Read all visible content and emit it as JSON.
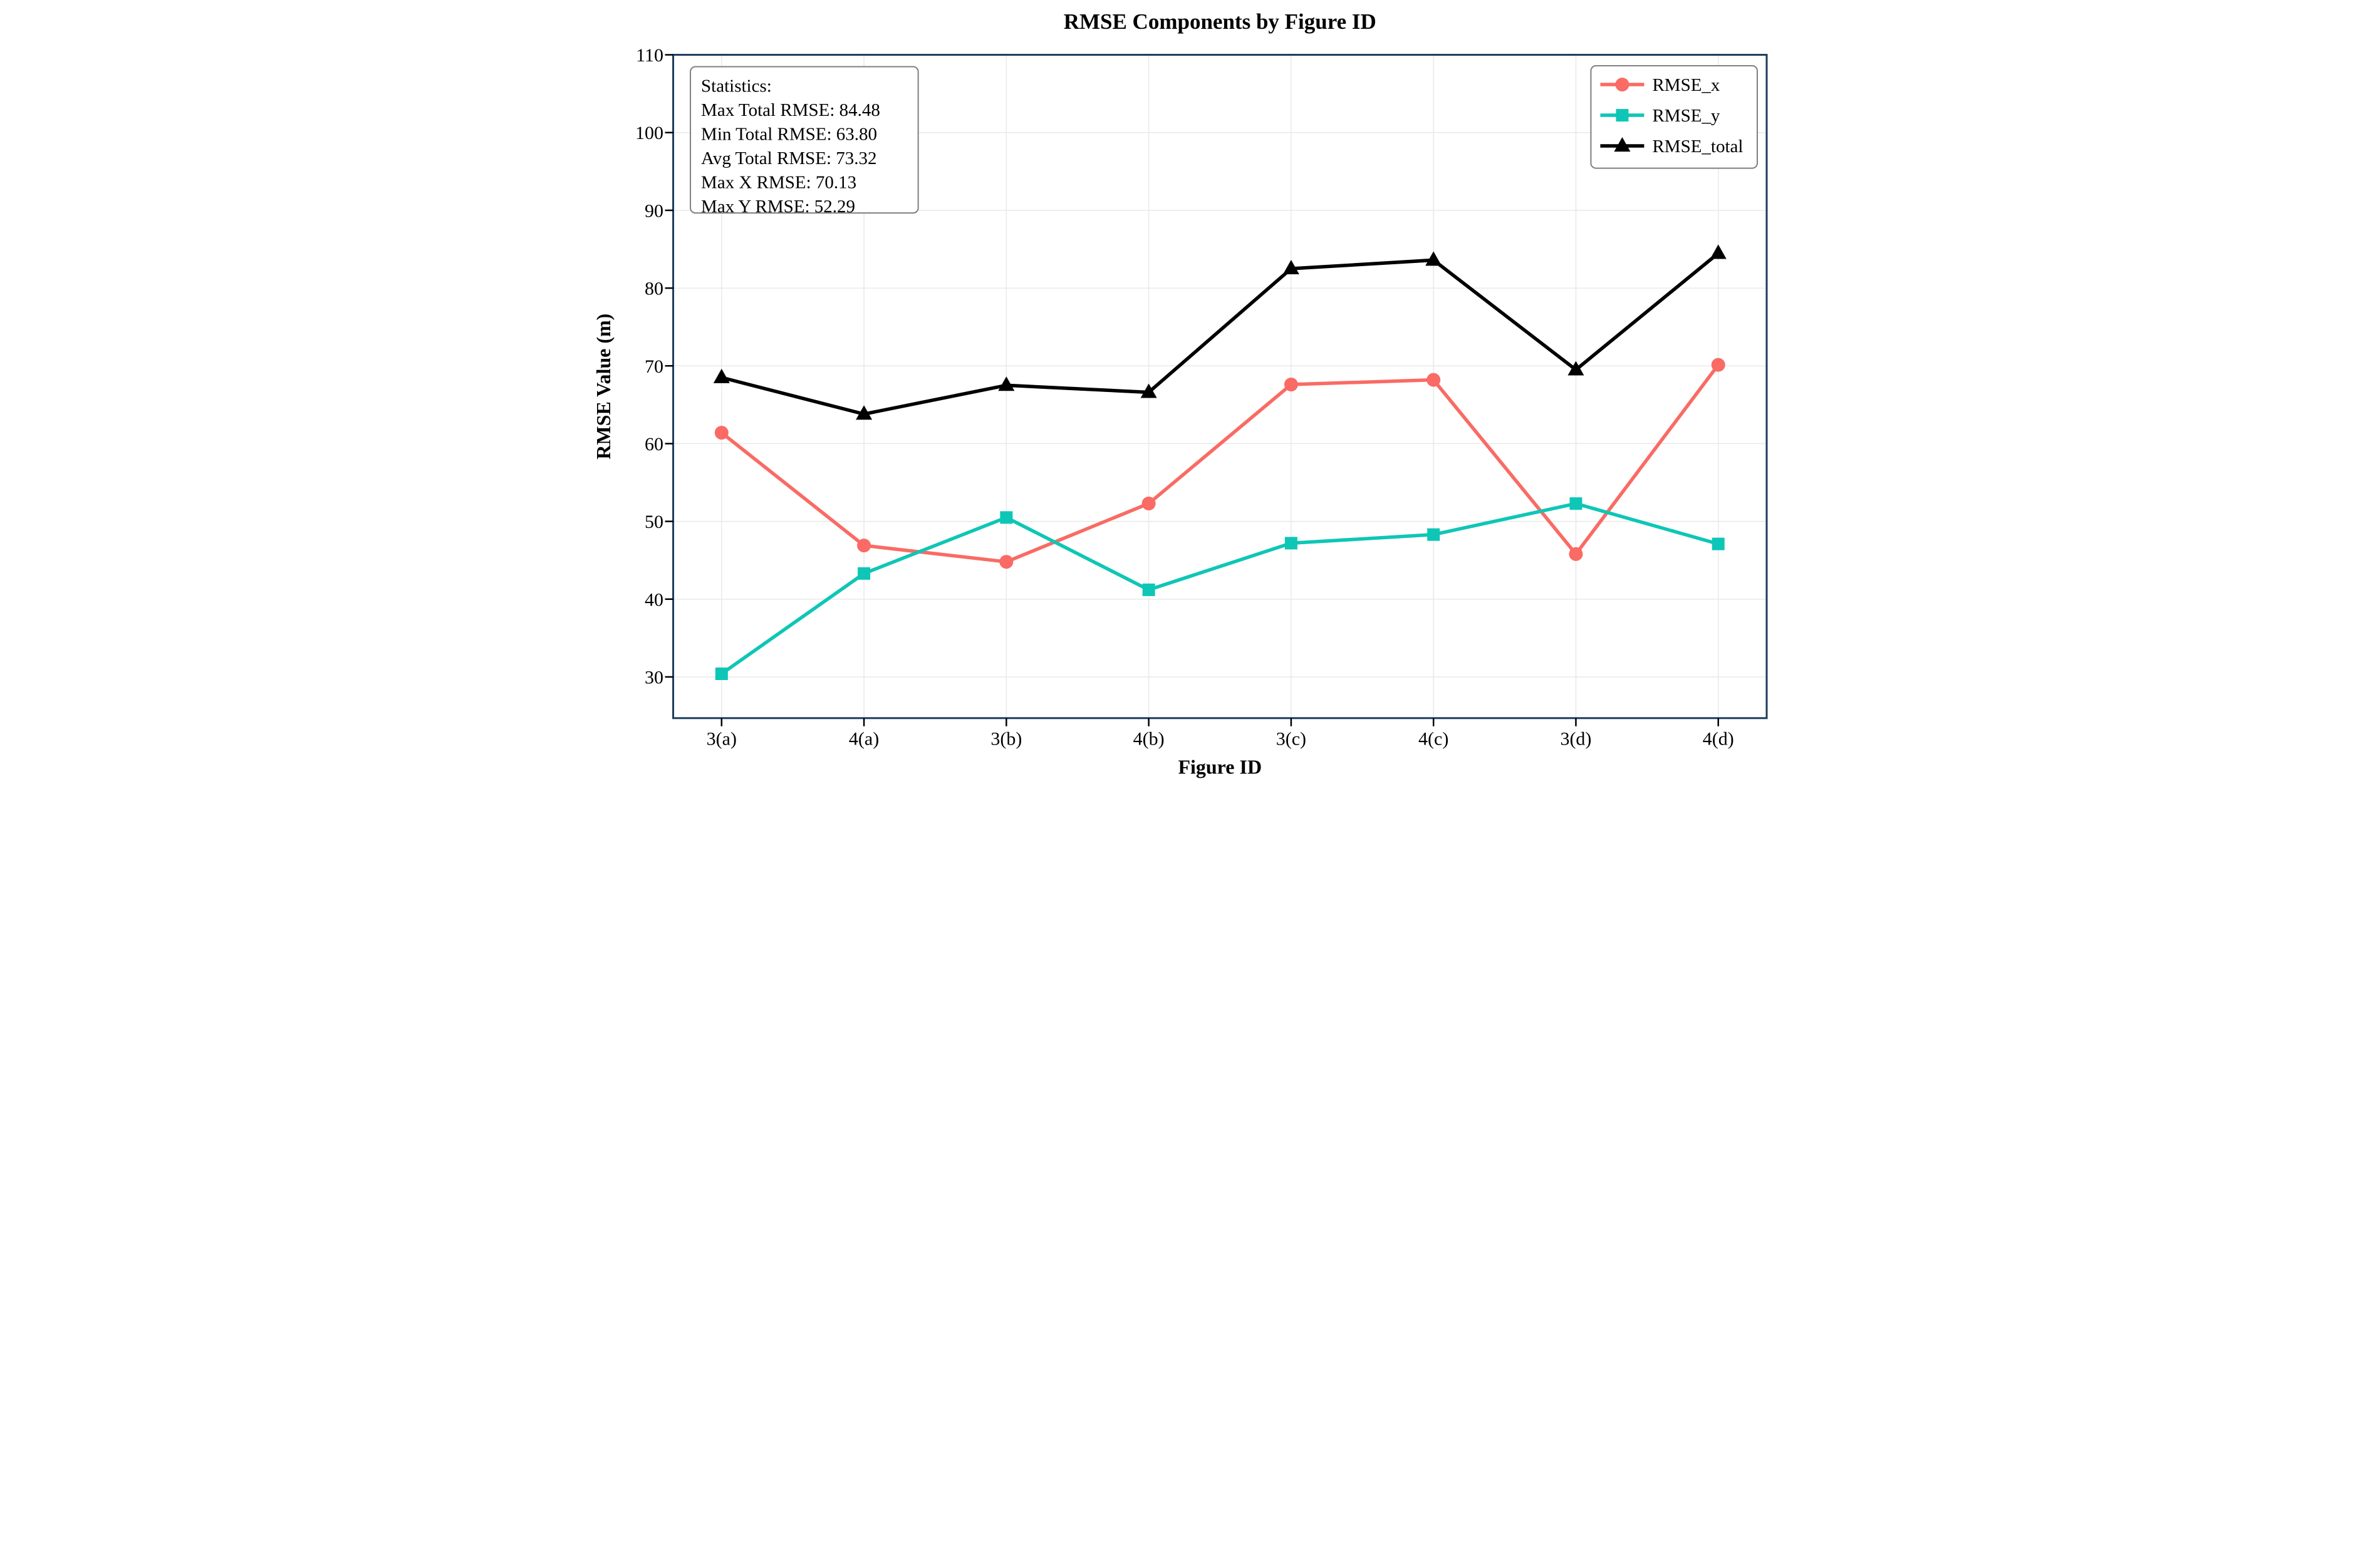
{
  "title": "RMSE Components by Figure ID",
  "axes": {
    "xlabel": "Figure ID",
    "ylabel": "RMSE Value (m)"
  },
  "stats_box": {
    "lines": [
      "Statistics:",
      "Max Total RMSE: 84.48",
      "Min Total RMSE: 63.80",
      "Avg Total RMSE: 73.32",
      "Max X RMSE: 70.13",
      "Max Y RMSE: 52.29"
    ],
    "values": {
      "max_total_rmse": 84.48,
      "min_total_rmse": 63.8,
      "avg_total_rmse": 73.32,
      "max_x_rmse": 70.13,
      "max_y_rmse": 52.29
    }
  },
  "legend": {
    "position": "upper right",
    "items": [
      "RMSE_x",
      "RMSE_y",
      "RMSE_total"
    ]
  },
  "colors": {
    "rmse_x": "#F96B64",
    "rmse_y": "#0EC6B6",
    "rmse_total": "#000000",
    "spine": "#1D3C5C",
    "grid": "#E9E9E9",
    "tick": "#000000",
    "box_border": "#7F7F7F",
    "background": "#FFFFFF"
  },
  "chart_data": {
    "type": "line",
    "title": "RMSE Components by Figure ID",
    "xlabel": "Figure ID",
    "ylabel": "RMSE Value (m)",
    "categories": [
      "3(a)",
      "4(a)",
      "3(b)",
      "4(b)",
      "3(c)",
      "4(c)",
      "3(d)",
      "4(d)"
    ],
    "series": [
      {
        "name": "RMSE_x",
        "color": "#F96B64",
        "marker": "circle",
        "values": [
          61.4,
          46.9,
          44.8,
          52.3,
          67.6,
          68.2,
          45.8,
          70.13
        ]
      },
      {
        "name": "RMSE_y",
        "color": "#0EC6B6",
        "marker": "square",
        "values": [
          30.4,
          43.3,
          50.5,
          41.2,
          47.2,
          48.3,
          52.29,
          47.1
        ]
      },
      {
        "name": "RMSE_total",
        "color": "#000000",
        "marker": "triangle",
        "values": [
          68.5,
          63.8,
          67.5,
          66.6,
          82.5,
          83.6,
          69.5,
          84.48
        ]
      }
    ],
    "ylim": [
      24.7,
      110
    ],
    "yticks": [
      30,
      40,
      50,
      60,
      70,
      80,
      90,
      100,
      110
    ],
    "grid": true,
    "legend_position": "upper right"
  }
}
